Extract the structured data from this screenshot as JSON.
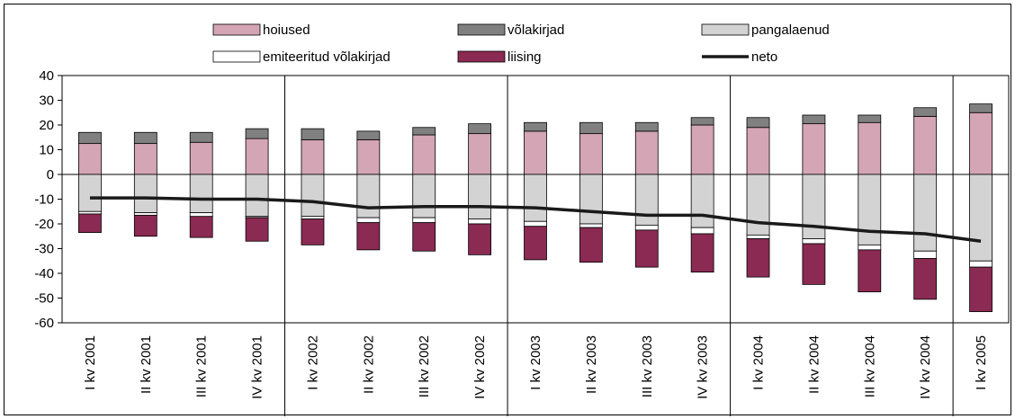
{
  "chart_data": {
    "type": "bar",
    "stacked": true,
    "categories": [
      "I kv 2001",
      "II kv 2001",
      "III kv 2001",
      "IV kv 2001",
      "I kv 2002",
      "II kv 2002",
      "III kv 2002",
      "IV kv 2002",
      "I kv 2003",
      "II kv 2003",
      "III kv 2003",
      "IV kv 2003",
      "I kv 2004",
      "II kv 2004",
      "III kv 2004",
      "IV kv 2004",
      "I kv 2005"
    ],
    "ylim": [
      -60,
      40
    ],
    "yticks": [
      40,
      30,
      20,
      10,
      0,
      -10,
      -20,
      -30,
      -40,
      -50,
      -60
    ],
    "grid": false,
    "legend_position": "top",
    "series": [
      {
        "name": "hoiused",
        "color": "#d4a5b5",
        "values": [
          12.5,
          12.5,
          13.0,
          14.5,
          14.0,
          14.0,
          16.0,
          16.5,
          17.5,
          16.5,
          17.5,
          20.0,
          19.0,
          20.5,
          21.0,
          23.5,
          25.0
        ]
      },
      {
        "name": "võlakirjad",
        "color": "#808080",
        "values": [
          4.5,
          4.5,
          4.0,
          4.0,
          4.5,
          3.5,
          3.0,
          4.0,
          3.5,
          4.5,
          3.5,
          3.0,
          4.0,
          3.5,
          3.0,
          3.5,
          3.5
        ]
      },
      {
        "name": "pangalaenud",
        "color": "#d3d3d3",
        "values": [
          -15.0,
          -15.5,
          -15.5,
          -17.0,
          -17.0,
          -17.5,
          -17.5,
          -18.0,
          -19.0,
          -20.0,
          -20.5,
          -21.5,
          -24.5,
          -26.0,
          -28.5,
          -31.0,
          -35.0
        ]
      },
      {
        "name": "emiteeritud võlakirjad",
        "color": "#ffffff",
        "values": [
          -1.0,
          -1.0,
          -1.5,
          -0.5,
          -1.0,
          -2.0,
          -2.0,
          -2.0,
          -2.0,
          -1.5,
          -2.0,
          -2.5,
          -1.5,
          -2.0,
          -2.0,
          -3.0,
          -2.5
        ]
      },
      {
        "name": "liising",
        "color": "#8b2a52",
        "values": [
          -7.5,
          -8.5,
          -8.5,
          -9.5,
          -10.5,
          -11.0,
          -11.5,
          -12.5,
          -13.5,
          -14.0,
          -15.0,
          -15.5,
          -15.5,
          -16.5,
          -17.0,
          -16.5,
          -18.0
        ]
      },
      {
        "name": "neto",
        "type": "line",
        "color": "#1a1a1a",
        "values": [
          -9.5,
          -9.5,
          -10.0,
          -10.0,
          -11.0,
          -13.5,
          -13.0,
          -13.0,
          -13.5,
          -15.0,
          -16.5,
          -16.5,
          -19.5,
          -21.0,
          -23.0,
          -24.0,
          -27.0
        ]
      }
    ],
    "year_separators_after": [
      3,
      7,
      11,
      15
    ]
  }
}
